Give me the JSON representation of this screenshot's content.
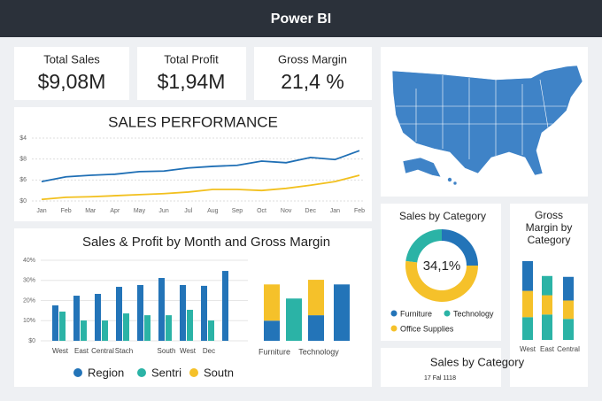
{
  "header": {
    "title": "Power BI"
  },
  "kpis": [
    {
      "label": "Total Sales",
      "value": "$9,08M"
    },
    {
      "label": "Total Profit",
      "value": "$1,94M"
    },
    {
      "label": "Gross Margin",
      "value": "21,4 %"
    }
  ],
  "chart_data": [
    {
      "type": "line",
      "title": "SALES PERFORMANCE",
      "categories": [
        "Jan",
        "Feb",
        "Mar",
        "Apr",
        "May",
        "Jun",
        "Jul",
        "Aug",
        "Sep",
        "Oct",
        "Nov",
        "Dec",
        "Jan",
        "Feb"
      ],
      "y_labels": [
        "$4",
        "$8",
        "$6",
        "$0"
      ],
      "ylim": [
        0,
        12
      ],
      "grid": true,
      "series": [
        {
          "color": "#1f6fb5",
          "values": [
            3.7,
            4.6,
            4.9,
            5.1,
            5.6,
            5.7,
            6.3,
            6.6,
            6.8,
            7.6,
            7.3,
            8.3,
            7.9,
            9.6
          ]
        },
        {
          "color": "#f2c01e",
          "values": [
            0.3,
            0.7,
            0.8,
            1.0,
            1.2,
            1.4,
            1.7,
            2.2,
            2.2,
            2.0,
            2.4,
            3.0,
            3.7,
            4.9
          ]
        }
      ]
    },
    {
      "type": "bar",
      "title": "Sales & Profit by Month and Gross Margin",
      "categories": [
        "West",
        "East",
        "Central",
        "Stach",
        null,
        "South",
        "West",
        "Dec",
        null
      ],
      "ylim": [
        0,
        40
      ],
      "grid": true,
      "yticks": [
        {
          "value": 0,
          "label": "$0"
        },
        {
          "value": 10,
          "label": "10%"
        },
        {
          "value": 20,
          "label": "20%"
        },
        {
          "value": 30,
          "label": "30%"
        },
        {
          "value": 40,
          "label": "40%"
        }
      ],
      "series": [
        {
          "color": "#2374b8",
          "values": [
            17.6,
            22.4,
            23.3,
            26.8,
            27.7,
            31.2,
            27.7,
            27.3,
            34.7
          ]
        },
        {
          "color": "#2bb3a6",
          "values": [
            14.5,
            10.1,
            10.1,
            13.6,
            12.7,
            12.7,
            15.4,
            10.1,
            null
          ]
        }
      ],
      "legend": [
        {
          "name": "Region",
          "color": "#2374b8"
        },
        {
          "name": "Sentri",
          "color": "#2bb3a6"
        },
        {
          "name": "Soutn",
          "color": "#f5c12a"
        }
      ]
    },
    {
      "type": "stacked-bar",
      "categories": [
        "Furniture",
        null,
        "Technology",
        null
      ],
      "ylim": [
        0,
        40
      ],
      "series": [
        {
          "color": "#2374b8",
          "values": [
            10,
            null,
            12.7,
            28
          ]
        },
        {
          "color": "#2bb3a6",
          "values": [
            null,
            21,
            null,
            null
          ]
        },
        {
          "color": "#f5c12a",
          "values": [
            18,
            null,
            17.6,
            null
          ]
        }
      ]
    },
    {
      "type": "donut",
      "title": "Sales by Category",
      "center_label": "34,1%",
      "categories": [
        "Furniture",
        "Technology",
        "Office Supplies"
      ],
      "values": [
        25,
        23,
        52
      ],
      "colors": [
        "#2374b8",
        "#2bb3a6",
        "#f5c12a"
      ]
    },
    {
      "type": "stacked-bar",
      "title": "Gross Margin by Category",
      "categories": [
        "West",
        "East",
        "Central"
      ],
      "ylim": [
        0,
        95
      ],
      "series": [
        {
          "color": "#2bb3a6",
          "values": [
            26,
            29,
            24
          ]
        },
        {
          "color": "#f5c12a",
          "values": [
            30,
            22,
            21
          ]
        },
        {
          "color": "#2374b8",
          "values": [
            34,
            null,
            27
          ]
        },
        {
          "color": "#2bb3a6",
          "values": [
            null,
            22,
            null
          ]
        }
      ]
    }
  ],
  "card": {
    "title": "Sales by Category",
    "subtitle": "17 Fal 1118"
  }
}
